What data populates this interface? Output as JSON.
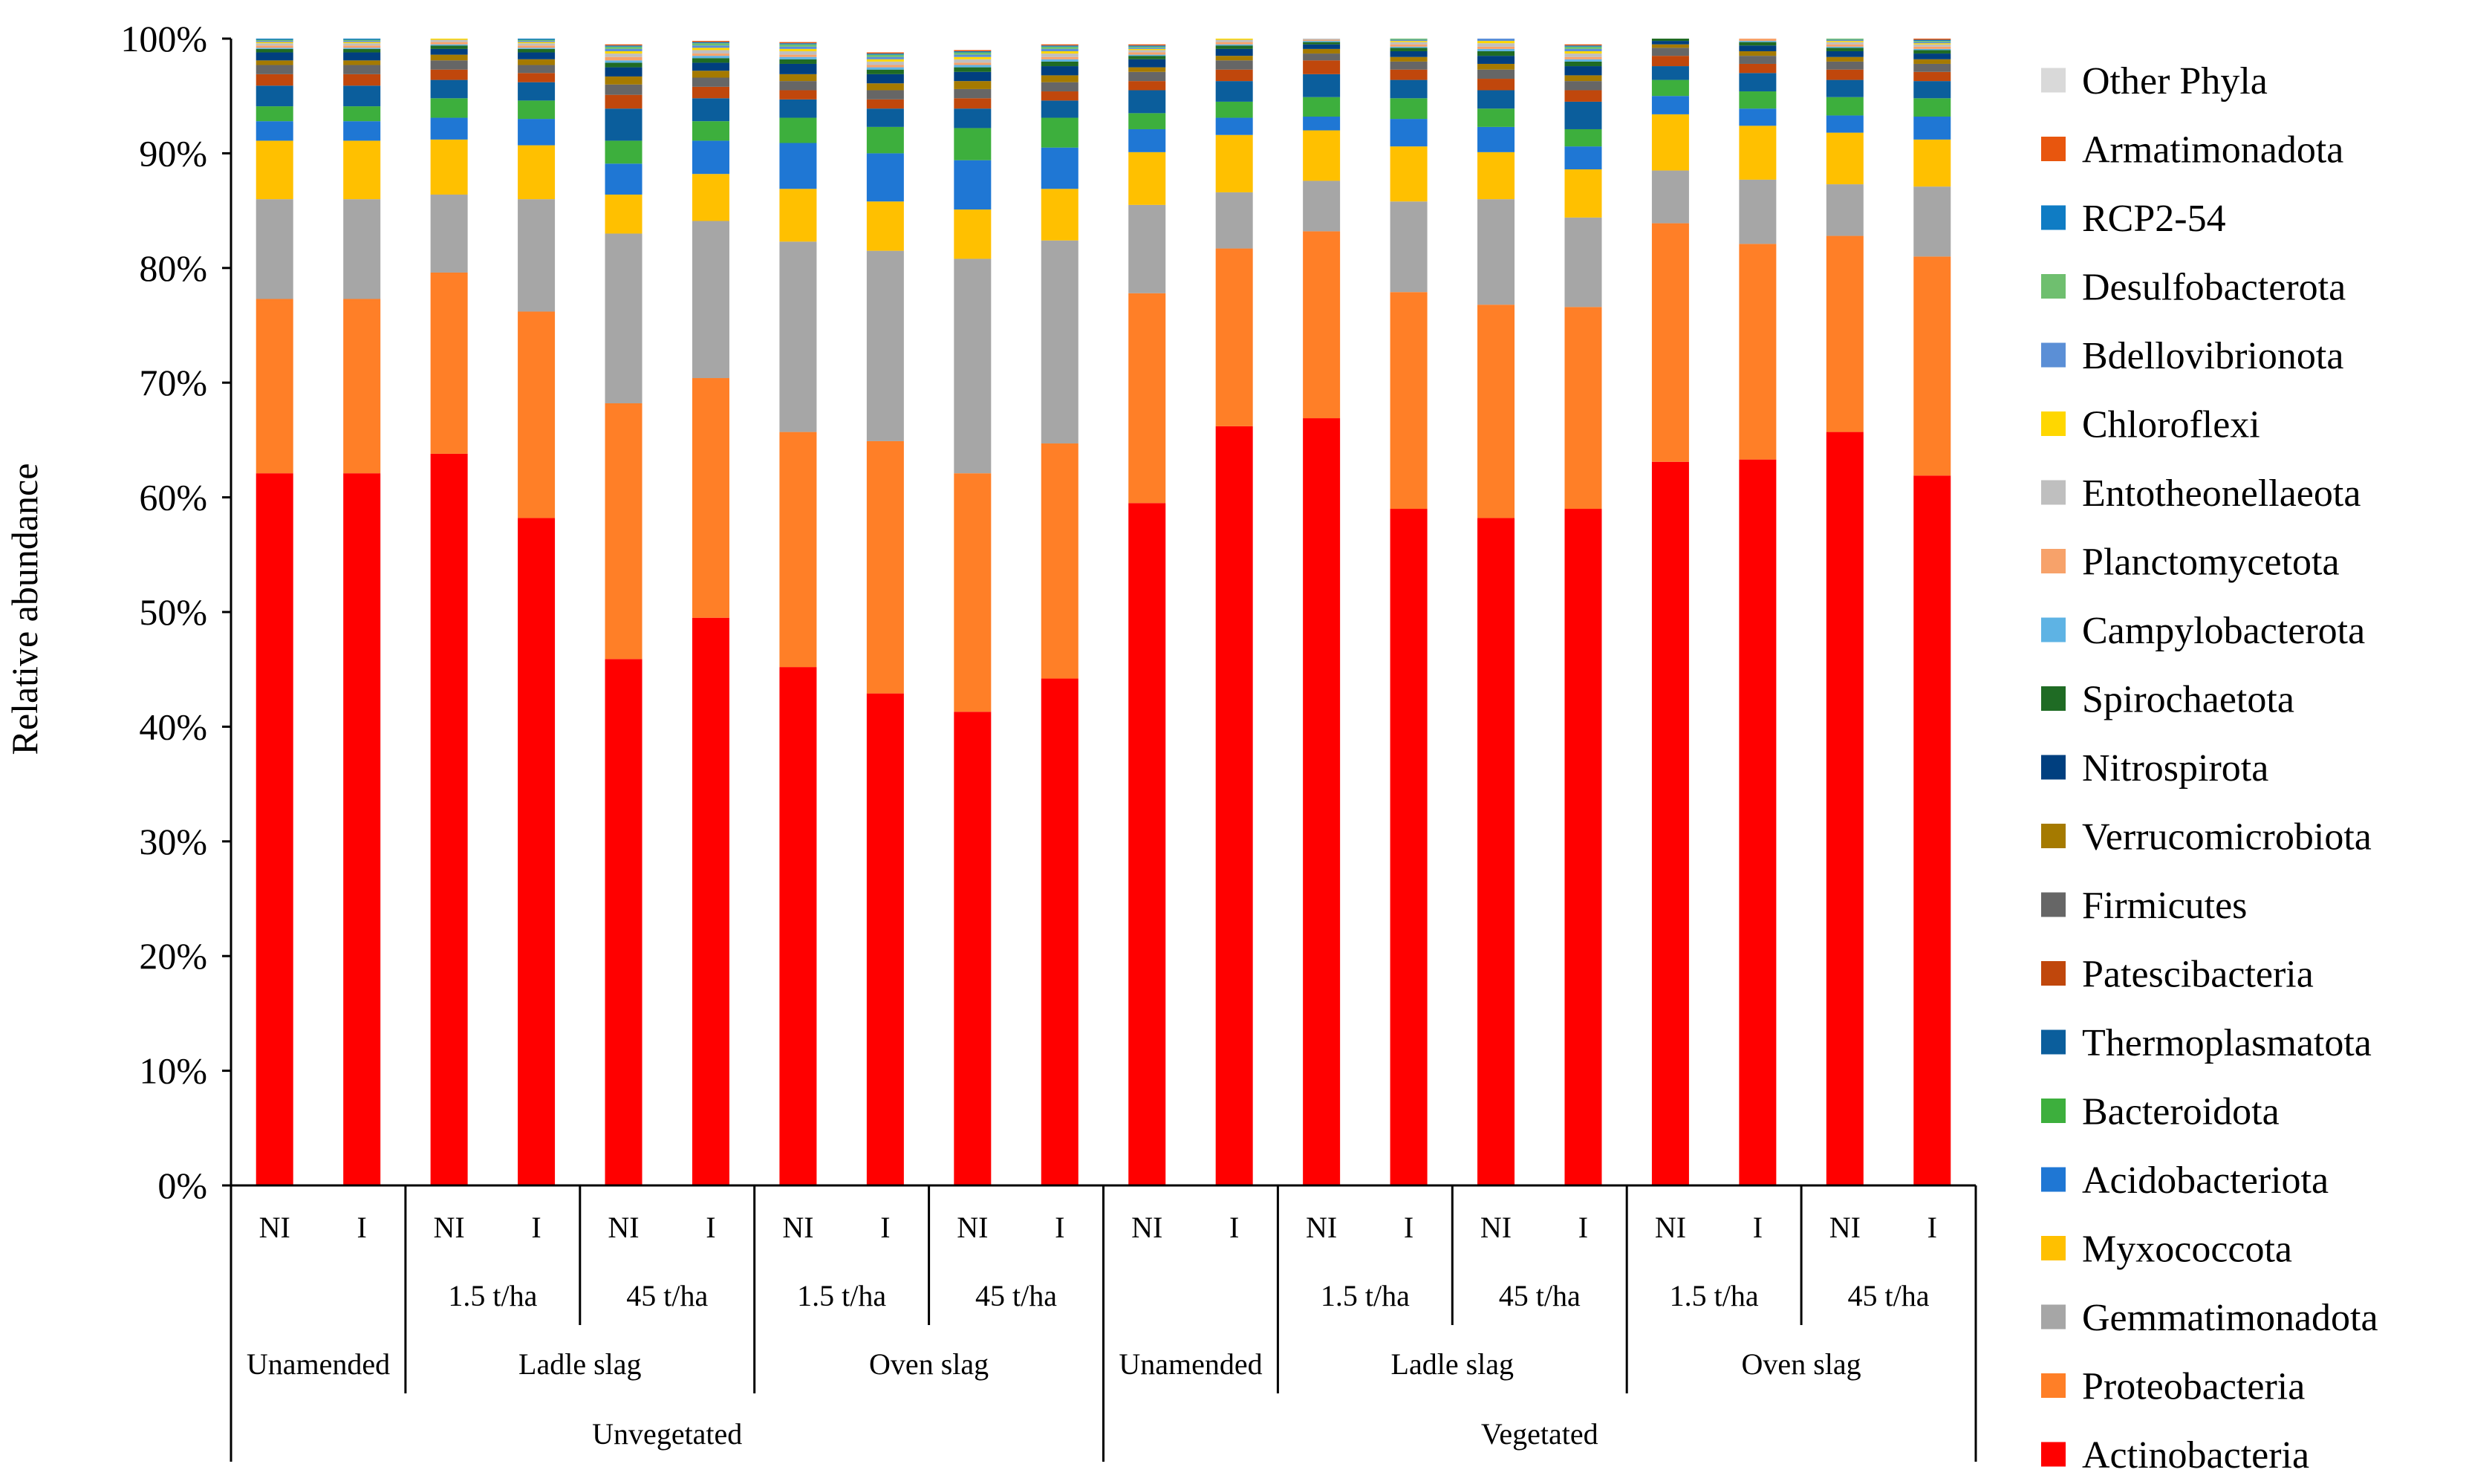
{
  "chart_data": {
    "type": "bar",
    "stacked": true,
    "ylabel": "Relative abundance",
    "ylim": [
      0,
      100
    ],
    "ytick_labels": [
      "0%",
      "10%",
      "20%",
      "30%",
      "40%",
      "50%",
      "60%",
      "70%",
      "80%",
      "90%",
      "100%"
    ],
    "categories": [
      {
        "treatment": "NI",
        "rate": "",
        "amendment": "Unamended",
        "vegetation": "Unvegetated"
      },
      {
        "treatment": "I",
        "rate": "",
        "amendment": "Unamended",
        "vegetation": "Unvegetated"
      },
      {
        "treatment": "NI",
        "rate": "1.5 t/ha",
        "amendment": "Ladle slag",
        "vegetation": "Unvegetated"
      },
      {
        "treatment": "I",
        "rate": "1.5 t/ha",
        "amendment": "Ladle slag",
        "vegetation": "Unvegetated"
      },
      {
        "treatment": "NI",
        "rate": "45 t/ha",
        "amendment": "Ladle slag",
        "vegetation": "Unvegetated"
      },
      {
        "treatment": "I",
        "rate": "45 t/ha",
        "amendment": "Ladle slag",
        "vegetation": "Unvegetated"
      },
      {
        "treatment": "NI",
        "rate": "1.5 t/ha",
        "amendment": "Oven slag",
        "vegetation": "Unvegetated"
      },
      {
        "treatment": "I",
        "rate": "1.5 t/ha",
        "amendment": "Oven slag",
        "vegetation": "Unvegetated"
      },
      {
        "treatment": "NI",
        "rate": "45 t/ha",
        "amendment": "Oven slag",
        "vegetation": "Unvegetated"
      },
      {
        "treatment": "I",
        "rate": "45 t/ha",
        "amendment": "Oven slag",
        "vegetation": "Unvegetated"
      },
      {
        "treatment": "NI",
        "rate": "",
        "amendment": "Unamended",
        "vegetation": "Vegetated"
      },
      {
        "treatment": "I",
        "rate": "",
        "amendment": "Unamended",
        "vegetation": "Vegetated"
      },
      {
        "treatment": "NI",
        "rate": "1.5 t/ha",
        "amendment": "Ladle slag",
        "vegetation": "Vegetated"
      },
      {
        "treatment": "I",
        "rate": "1.5 t/ha",
        "amendment": "Ladle slag",
        "vegetation": "Vegetated"
      },
      {
        "treatment": "NI",
        "rate": "45 t/ha",
        "amendment": "Ladle slag",
        "vegetation": "Vegetated"
      },
      {
        "treatment": "I",
        "rate": "45 t/ha",
        "amendment": "Ladle slag",
        "vegetation": "Vegetated"
      },
      {
        "treatment": "NI",
        "rate": "1.5 t/ha",
        "amendment": "Oven slag",
        "vegetation": "Vegetated"
      },
      {
        "treatment": "I",
        "rate": "1.5 t/ha",
        "amendment": "Oven slag",
        "vegetation": "Vegetated"
      },
      {
        "treatment": "NI",
        "rate": "45 t/ha",
        "amendment": "Oven slag",
        "vegetation": "Vegetated"
      },
      {
        "treatment": "I",
        "rate": "45 t/ha",
        "amendment": "Oven slag",
        "vegetation": "Vegetated"
      }
    ],
    "rate_groups": [
      {
        "label": "",
        "start": 0,
        "end": 1
      },
      {
        "label": "1.5 t/ha",
        "start": 2,
        "end": 3
      },
      {
        "label": "45 t/ha",
        "start": 4,
        "end": 5
      },
      {
        "label": "1.5 t/ha",
        "start": 6,
        "end": 7
      },
      {
        "label": "45 t/ha",
        "start": 8,
        "end": 9
      },
      {
        "label": "",
        "start": 10,
        "end": 11
      },
      {
        "label": "1.5 t/ha",
        "start": 12,
        "end": 13
      },
      {
        "label": "45 t/ha",
        "start": 14,
        "end": 15
      },
      {
        "label": "1.5 t/ha",
        "start": 16,
        "end": 17
      },
      {
        "label": "45 t/ha",
        "start": 18,
        "end": 19
      }
    ],
    "amendment_groups": [
      {
        "label": "Unamended",
        "start": 0,
        "end": 1
      },
      {
        "label": "Ladle slag",
        "start": 2,
        "end": 5
      },
      {
        "label": "Oven slag",
        "start": 6,
        "end": 9
      },
      {
        "label": "Unamended",
        "start": 10,
        "end": 11
      },
      {
        "label": "Ladle slag",
        "start": 12,
        "end": 15
      },
      {
        "label": "Oven slag",
        "start": 16,
        "end": 19
      }
    ],
    "vegetation_groups": [
      {
        "label": "Unvegetated",
        "start": 0,
        "end": 9
      },
      {
        "label": "Vegetated",
        "start": 10,
        "end": 19
      }
    ],
    "series": [
      {
        "name": "Actinobacteria",
        "color": "#FF0000",
        "values": [
          62.1,
          62.1,
          63.8,
          58.2,
          45.9,
          49.5,
          45.2,
          42.9,
          41.3,
          44.2,
          59.5,
          66.2,
          66.9,
          59.0,
          58.2,
          59.0,
          63.1,
          63.3,
          65.7,
          61.9
        ]
      },
      {
        "name": "Proteobacteria",
        "color": "#FF7F27",
        "values": [
          15.2,
          15.2,
          15.8,
          18.0,
          22.3,
          20.9,
          20.5,
          22.0,
          20.8,
          20.5,
          18.3,
          15.5,
          16.3,
          18.9,
          18.6,
          17.6,
          20.8,
          18.8,
          17.1,
          19.1
        ]
      },
      {
        "name": "Gemmatimonadota",
        "color": "#A6A6A6",
        "values": [
          8.7,
          8.7,
          6.8,
          9.8,
          14.8,
          13.7,
          16.6,
          16.6,
          18.7,
          17.7,
          7.7,
          4.9,
          4.4,
          7.9,
          9.2,
          7.8,
          4.6,
          5.6,
          4.5,
          6.1
        ]
      },
      {
        "name": "Myxococcota",
        "color": "#FFC000",
        "values": [
          5.1,
          5.1,
          4.8,
          4.7,
          3.4,
          4.1,
          4.6,
          4.3,
          4.3,
          4.5,
          4.6,
          5.0,
          4.4,
          4.8,
          4.1,
          4.2,
          4.9,
          4.7,
          4.5,
          4.1
        ]
      },
      {
        "name": "Acidobacteriota",
        "color": "#1F77D4",
        "values": [
          1.7,
          1.7,
          1.9,
          2.3,
          2.7,
          2.9,
          4.0,
          4.2,
          4.3,
          3.6,
          2.0,
          1.5,
          1.2,
          2.4,
          2.2,
          2.0,
          1.6,
          1.5,
          1.5,
          2.0
        ]
      },
      {
        "name": "Bacteroidota",
        "color": "#3DAF3D",
        "values": [
          1.3,
          1.3,
          1.7,
          1.6,
          2.0,
          1.7,
          2.2,
          2.3,
          2.8,
          2.6,
          1.4,
          1.4,
          1.7,
          1.8,
          1.6,
          1.5,
          1.4,
          1.5,
          1.6,
          1.6
        ]
      },
      {
        "name": "Thermoplasmatota",
        "color": "#0B5E9C",
        "values": [
          1.8,
          1.8,
          1.6,
          1.6,
          2.8,
          2.0,
          1.6,
          1.6,
          1.7,
          1.5,
          2.0,
          1.8,
          2.0,
          1.6,
          1.6,
          2.4,
          1.2,
          1.6,
          1.5,
          1.5
        ]
      },
      {
        "name": "Patescibacteria",
        "color": "#C0470C",
        "values": [
          1.0,
          1.0,
          0.9,
          0.8,
          1.2,
          1.0,
          0.8,
          0.8,
          0.9,
          0.8,
          0.8,
          1.0,
          1.2,
          0.9,
          1.0,
          1.0,
          0.9,
          0.8,
          0.9,
          0.8
        ]
      },
      {
        "name": "Firmicutes",
        "color": "#666666",
        "values": [
          0.8,
          0.8,
          0.8,
          0.7,
          0.9,
          0.8,
          0.8,
          0.8,
          0.8,
          0.8,
          0.8,
          0.8,
          0.6,
          0.7,
          0.8,
          0.8,
          0.7,
          0.7,
          0.7,
          0.7
        ]
      },
      {
        "name": "Verrucomicrobiota",
        "color": "#A57A00",
        "values": [
          0.4,
          0.4,
          0.5,
          0.5,
          0.7,
          0.6,
          0.6,
          0.6,
          0.7,
          0.6,
          0.4,
          0.4,
          0.4,
          0.4,
          0.5,
          0.5,
          0.3,
          0.4,
          0.4,
          0.4
        ]
      },
      {
        "name": "Nitrospirota",
        "color": "#003F7F",
        "values": [
          0.7,
          0.7,
          0.5,
          0.6,
          0.8,
          0.7,
          0.9,
          0.8,
          0.8,
          0.8,
          0.7,
          0.6,
          0.4,
          0.5,
          0.7,
          0.8,
          0.3,
          0.5,
          0.5,
          0.5
        ]
      },
      {
        "name": "Spirochaetota",
        "color": "#1F6B24",
        "values": [
          0.3,
          0.3,
          0.3,
          0.3,
          0.4,
          0.4,
          0.4,
          0.4,
          0.4,
          0.4,
          0.3,
          0.3,
          0.2,
          0.3,
          0.4,
          0.4,
          0.2,
          0.3,
          0.3,
          0.3
        ]
      },
      {
        "name": "Campylobacterota",
        "color": "#5EB3E4",
        "values": [
          0.1,
          0.1,
          0.1,
          0.1,
          0.2,
          0.2,
          0.2,
          0.2,
          0.2,
          0.2,
          0.1,
          0.1,
          0.1,
          0.1,
          0.2,
          0.2,
          0.1,
          0.1,
          0.1,
          0.1
        ]
      },
      {
        "name": "Planctomycetota",
        "color": "#F7A26A",
        "values": [
          0.2,
          0.2,
          0.2,
          0.2,
          0.3,
          0.2,
          0.2,
          0.2,
          0.2,
          0.2,
          0.2,
          0.2,
          0.1,
          0.2,
          0.2,
          0.2,
          0.1,
          0.2,
          0.2,
          0.2
        ]
      },
      {
        "name": "Entotheonellaeota",
        "color": "#BFBFBF",
        "values": [
          0.2,
          0.2,
          0.2,
          0.2,
          0.3,
          0.3,
          0.3,
          0.3,
          0.3,
          0.3,
          0.2,
          0.2,
          0.1,
          0.2,
          0.3,
          0.3,
          0.1,
          0.2,
          0.2,
          0.2
        ]
      },
      {
        "name": "Chloroflexi",
        "color": "#FFD700",
        "values": [
          0.1,
          0.1,
          0.1,
          0.1,
          0.2,
          0.2,
          0.2,
          0.2,
          0.2,
          0.2,
          0.1,
          0.1,
          0.1,
          0.1,
          0.2,
          0.2,
          0.1,
          0.1,
          0.1,
          0.1
        ]
      },
      {
        "name": "Bdellovibrionota",
        "color": "#5B8FD6",
        "values": [
          0.1,
          0.1,
          0.1,
          0.1,
          0.2,
          0.2,
          0.2,
          0.2,
          0.2,
          0.2,
          0.1,
          0.1,
          0.1,
          0.1,
          0.2,
          0.2,
          0.1,
          0.1,
          0.1,
          0.1
        ]
      },
      {
        "name": "Desulfobacterota",
        "color": "#6FBF6F",
        "values": [
          0.1,
          0.1,
          0.1,
          0.1,
          0.2,
          0.2,
          0.2,
          0.2,
          0.2,
          0.2,
          0.1,
          0.1,
          0.1,
          0.1,
          0.2,
          0.2,
          0.1,
          0.1,
          0.1,
          0.1
        ]
      },
      {
        "name": "RCP2-54",
        "color": "#0F7CC4",
        "values": [
          0.1,
          0.1,
          0.1,
          0.1,
          0.1,
          0.1,
          0.1,
          0.1,
          0.1,
          0.1,
          0.1,
          0.1,
          0.1,
          0.1,
          0.1,
          0.1,
          0.1,
          0.1,
          0.1,
          0.1
        ]
      },
      {
        "name": "Armatimonadota",
        "color": "#E8560E",
        "values": [
          0.1,
          0.1,
          0.1,
          0.1,
          0.1,
          0.1,
          0.1,
          0.1,
          0.1,
          0.1,
          0.1,
          0.1,
          0.1,
          0.1,
          0.1,
          0.1,
          0.1,
          0.1,
          0.1,
          0.1
        ]
      },
      {
        "name": "Other Phyla",
        "color": "#D9D9D9",
        "values": [
          0.0,
          0.0,
          0.0,
          0.0,
          0.0,
          0.0,
          0.0,
          0.0,
          0.0,
          0.0,
          0.0,
          0.0,
          0.0,
          0.0,
          0.0,
          0.0,
          0.0,
          0.0,
          0.0,
          0.0
        ]
      }
    ],
    "legend_order": [
      "Other Phyla",
      "Armatimonadota",
      "RCP2-54",
      "Desulfobacterota",
      "Bdellovibrionota",
      "Chloroflexi",
      "Entotheonellaeota",
      "Planctomycetota",
      "Campylobacterota",
      "Spirochaetota",
      "Nitrospirota",
      "Verrucomicrobiota",
      "Firmicutes",
      "Patescibacteria",
      "Thermoplasmatota",
      "Bacteroidota",
      "Acidobacteriota",
      "Myxococcota",
      "Gemmatimonadota",
      "Proteobacteria",
      "Actinobacteria"
    ],
    "legend_position": "right"
  }
}
